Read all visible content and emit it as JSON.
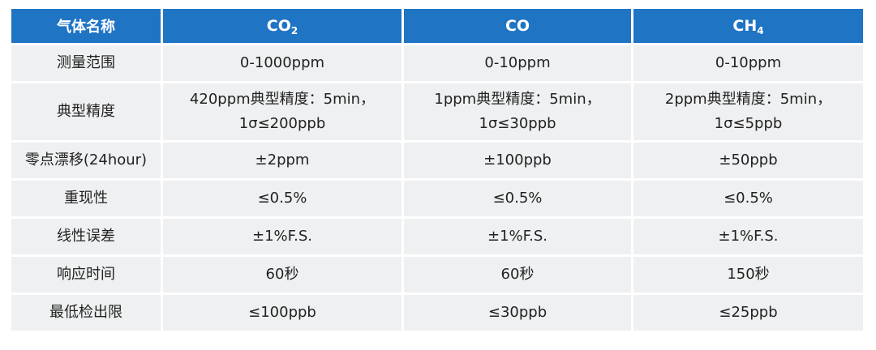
{
  "header": {
    "gas_name": "气体名称",
    "col1_base": "CO",
    "col1_sub": "2",
    "col2_base": "CO",
    "col2_sub": "",
    "col3_base": "CH",
    "col3_sub": "4"
  },
  "rows": [
    {
      "label": "测量范围",
      "values": [
        "0-1000ppm",
        "0-10ppm",
        "0-10ppm"
      ]
    },
    {
      "label": "典型精度",
      "values": [
        [
          "420ppm典型精度：5min，",
          "1σ≤200ppb"
        ],
        [
          "1ppm典型精度：5min，",
          "1σ≤30ppb"
        ],
        [
          "2ppm典型精度：5min，",
          "1σ≤5ppb"
        ]
      ]
    },
    {
      "label": "零点漂移(24hour)",
      "values": [
        "±2ppm",
        "±100ppb",
        "±50ppb"
      ]
    },
    {
      "label": "重现性",
      "values": [
        "≤0.5%",
        "≤0.5%",
        "≤0.5%"
      ]
    },
    {
      "label": "线性误差",
      "values": [
        "±1%F.S.",
        "±1%F.S.",
        "±1%F.S."
      ]
    },
    {
      "label": "响应时间",
      "values": [
        "60秒",
        "60秒",
        "150秒"
      ]
    },
    {
      "label": "最低检出限",
      "values": [
        "≤100ppb",
        "≤30ppb",
        "≤25ppb"
      ]
    }
  ],
  "colors": {
    "header_bg": "#1f74c4",
    "header_text": "#ffffff",
    "cell_bg": "#eff0f1",
    "cell_text": "#222222"
  }
}
